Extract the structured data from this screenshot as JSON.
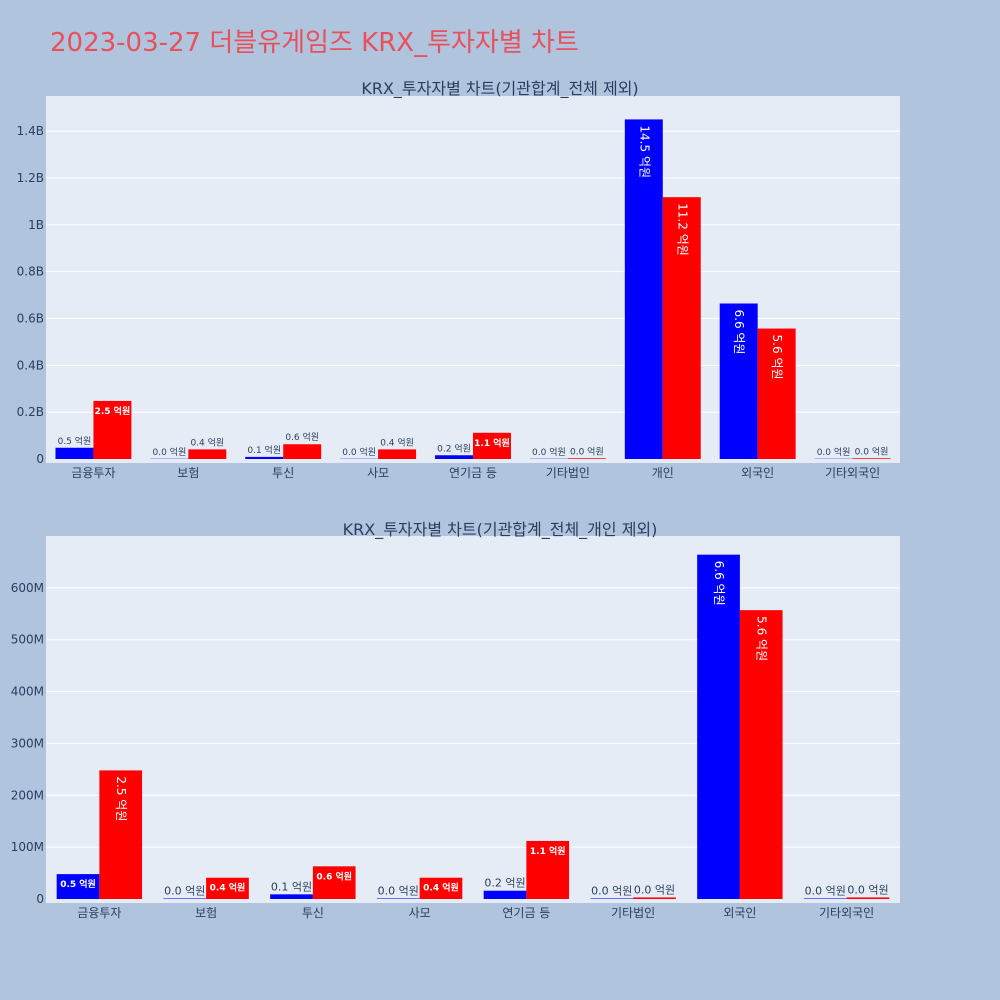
{
  "page_title": "2023-03-27 더블유게임즈 KRX_투자자별 차트",
  "colors": {
    "buy": "#0000ff",
    "sell": "#ff0000",
    "page_bg": "#b0c4de",
    "plot_bg": "#e5ecf6",
    "title": "#e8505b"
  },
  "chart_data": [
    {
      "type": "bar",
      "title": "KRX_투자자별 차트(기관합계_전체 제외)",
      "categories": [
        "금융투자",
        "보험",
        "투신",
        "사모",
        "연기금 등",
        "기타법인",
        "개인",
        "외국인",
        "기타외국인"
      ],
      "ylim": [
        0,
        1550000000
      ],
      "yticks": [
        {
          "value": 0,
          "label": "0"
        },
        {
          "value": 200000000,
          "label": "0.2B"
        },
        {
          "value": 400000000,
          "label": "0.4B"
        },
        {
          "value": 600000000,
          "label": "0.6B"
        },
        {
          "value": 800000000,
          "label": "0.8B"
        },
        {
          "value": 1000000000,
          "label": "1B"
        },
        {
          "value": 1200000000,
          "label": "1.2B"
        },
        {
          "value": 1400000000,
          "label": "1.4B"
        }
      ],
      "series": [
        {
          "color": "#0000ff",
          "values": [
            48000000,
            1000000,
            9000000,
            1000000,
            16000000,
            1000000,
            1450000000,
            664000000,
            1000000
          ],
          "labels": [
            "0.5 억원",
            "0.0 억원",
            "0.1 억원",
            "0.0 억원",
            "0.2 억원",
            "0.0 억원",
            "14.5 억원",
            "6.6 억원",
            "0.0 억원"
          ]
        },
        {
          "color": "#ff0000",
          "values": [
            248000000,
            41000000,
            63000000,
            41000000,
            112000000,
            3000000,
            1118000000,
            557000000,
            3000000
          ],
          "labels": [
            "2.5 억원",
            "0.4 억원",
            "0.6 억원",
            "0.4 억원",
            "1.1 억원",
            "0.0 억원",
            "11.2 억원",
            "5.6 억원",
            "0.0 억원"
          ]
        }
      ]
    },
    {
      "type": "bar",
      "title": "KRX_투자자별 차트(기관합계_전체_개인 제외)",
      "categories": [
        "금융투자",
        "보험",
        "투신",
        "사모",
        "연기금 등",
        "기타법인",
        "외국인",
        "기타외국인"
      ],
      "ylim": [
        0,
        700000000
      ],
      "yticks": [
        {
          "value": 0,
          "label": "0"
        },
        {
          "value": 100000000,
          "label": "100M"
        },
        {
          "value": 200000000,
          "label": "200M"
        },
        {
          "value": 300000000,
          "label": "300M"
        },
        {
          "value": 400000000,
          "label": "400M"
        },
        {
          "value": 500000000,
          "label": "500M"
        },
        {
          "value": 600000000,
          "label": "600M"
        }
      ],
      "series": [
        {
          "color": "#0000ff",
          "values": [
            48000000,
            1000000,
            9000000,
            1000000,
            16000000,
            1000000,
            664000000,
            1000000
          ],
          "labels": [
            "0.5 억원",
            "0.0 억원",
            "0.1 억원",
            "0.0 억원",
            "0.2 억원",
            "0.0 억원",
            "6.6 억원",
            "0.0 억원"
          ]
        },
        {
          "color": "#ff0000",
          "values": [
            248000000,
            41000000,
            63000000,
            41000000,
            112000000,
            3000000,
            557000000,
            3000000
          ],
          "labels": [
            "2.5 억원",
            "0.4 억원",
            "0.6 억원",
            "0.4 억원",
            "1.1 억원",
            "0.0 억원",
            "5.6 억원",
            "0.0 억원"
          ]
        }
      ]
    }
  ]
}
